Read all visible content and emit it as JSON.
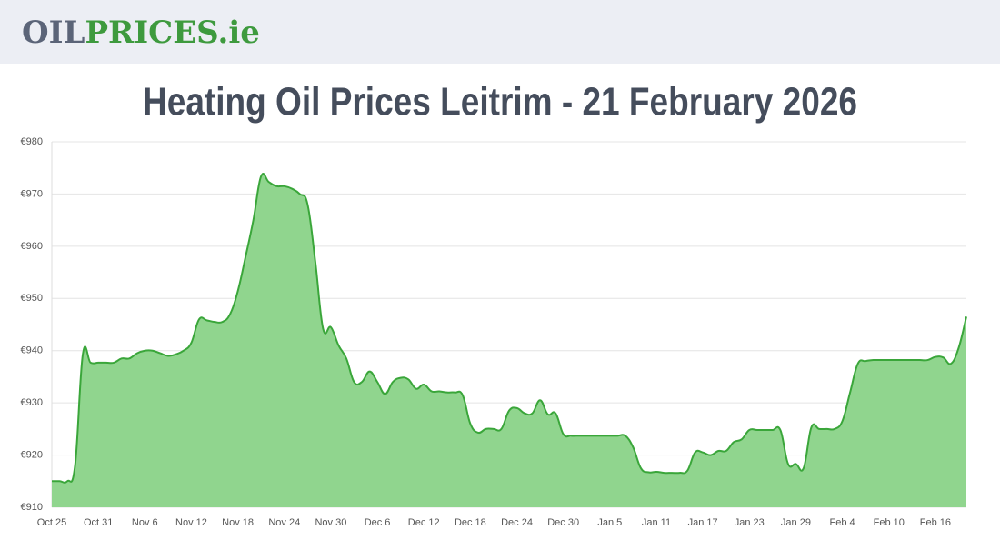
{
  "header": {
    "logo_parts": [
      "OIL",
      "PRICES.ie"
    ]
  },
  "chart_data": {
    "type": "area",
    "title": "Heating Oil Prices Leitrim - 21 February 2026",
    "categories": [
      "Oct 25",
      null,
      null,
      null,
      null,
      null,
      "Oct 31",
      null,
      null,
      null,
      null,
      null,
      "Nov 6",
      null,
      null,
      null,
      null,
      null,
      "Nov 12",
      null,
      null,
      null,
      null,
      null,
      "Nov 18",
      null,
      null,
      null,
      null,
      null,
      "Nov 24",
      null,
      null,
      null,
      null,
      null,
      "Nov 30",
      null,
      null,
      null,
      null,
      null,
      "Dec 6",
      null,
      null,
      null,
      null,
      null,
      "Dec 12",
      null,
      null,
      null,
      null,
      null,
      "Dec 18",
      null,
      null,
      null,
      null,
      null,
      "Dec 24",
      null,
      null,
      null,
      null,
      null,
      "Dec 30",
      null,
      null,
      null,
      null,
      null,
      "Jan 5",
      null,
      null,
      null,
      null,
      null,
      "Jan 11",
      null,
      null,
      null,
      null,
      null,
      "Jan 17",
      null,
      null,
      null,
      null,
      null,
      "Jan 23",
      null,
      null,
      null,
      null,
      null,
      "Jan 29",
      null,
      null,
      null,
      null,
      null,
      "Feb 4",
      null,
      null,
      null,
      null,
      null,
      "Feb 10",
      null,
      null,
      null,
      null,
      null,
      "Feb 16",
      null,
      null,
      null,
      null
    ],
    "values": [
      915,
      915,
      915,
      918,
      939.3,
      937.7,
      937.7,
      937.7,
      937.7,
      938.5,
      938.5,
      939.5,
      940,
      940,
      939.5,
      939,
      939.3,
      940,
      941.5,
      946,
      945.8,
      945.5,
      945.5,
      947,
      951.4,
      958,
      965,
      973.4,
      972.3,
      971.5,
      971.5,
      971,
      970,
      968,
      957,
      944.2,
      944.5,
      941,
      938.5,
      934,
      934,
      936,
      934,
      931.7,
      934,
      934.8,
      934.5,
      932.7,
      933.5,
      932.2,
      932.2,
      932,
      932,
      931.5,
      926,
      924.3,
      925,
      925,
      925,
      928.5,
      929,
      928,
      928,
      930.5,
      927.8,
      928,
      924,
      923.7,
      923.7,
      923.7,
      923.7,
      923.7,
      923.7,
      923.7,
      923.7,
      921.5,
      917.5,
      916.7,
      916.8,
      916.6,
      916.6,
      916.6,
      917,
      920.5,
      920.5,
      920,
      920.8,
      920.8,
      922.5,
      923,
      924.8,
      924.8,
      924.8,
      924.8,
      924.8,
      918.3,
      918.3,
      917.5,
      925.3,
      925,
      925,
      925,
      926.5,
      932,
      937.5,
      938,
      938.2,
      938.2,
      938.2,
      938.2,
      938.2,
      938.2,
      938.2,
      938.2,
      938.8,
      938.7,
      937.5,
      940.5,
      946.5
    ],
    "color": "#3aa63a",
    "fill": "#90d58e",
    "ylim": [
      910,
      980
    ],
    "yticks": [
      {
        "value": 910,
        "label": "€910"
      },
      {
        "value": 920,
        "label": "€920"
      },
      {
        "value": 930,
        "label": "€930"
      },
      {
        "value": 940,
        "label": "€940"
      },
      {
        "value": 950,
        "label": "€950"
      },
      {
        "value": 960,
        "label": "€960"
      },
      {
        "value": 970,
        "label": "€970"
      },
      {
        "value": 980,
        "label": "€980"
      }
    ],
    "grid": true
  }
}
